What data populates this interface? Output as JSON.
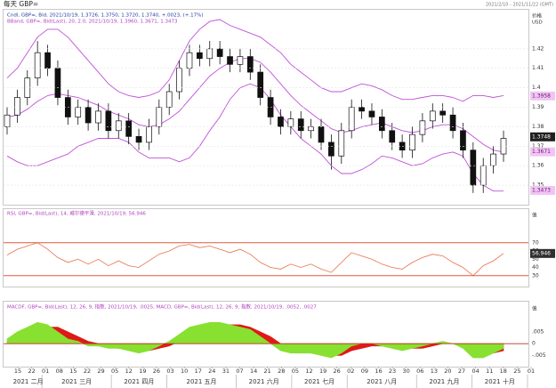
{
  "title": "每天 GBP=",
  "date_range": "2021/2/10 - 2021/11/22 (GMT)",
  "chart_data": [
    {
      "type": "candlestick",
      "legend": [
        "Cndl, GBP=, Bid, 2021/10/19, 1.3726, 1.3750, 1.3720, 1.3740, +.0023, (+.17%)",
        "BBand, GBP=, Bid(Last), 20, 2.0, 2021/10/19, 1.3960, 1.3671, 1.3473"
      ],
      "legend_colors": [
        "#2040a0",
        "#b040c0"
      ],
      "axis_label": [
        "价格",
        "USD"
      ],
      "open": [
        1.38,
        1.386,
        1.395,
        1.405,
        1.418,
        1.41,
        1.395,
        1.385,
        1.39,
        1.382,
        1.388,
        1.378,
        1.383,
        1.375,
        1.372,
        1.38,
        1.39,
        1.398,
        1.41,
        1.418,
        1.415,
        1.42,
        1.416,
        1.412,
        1.416,
        1.408,
        1.395,
        1.385,
        1.38,
        1.384,
        1.378,
        1.38,
        1.372,
        1.365,
        1.378,
        1.39,
        1.388,
        1.385,
        1.378,
        1.372,
        1.368,
        1.376,
        1.383,
        1.388,
        1.386,
        1.378,
        1.368,
        1.35,
        1.36,
        1.366
      ],
      "high": [
        1.39,
        1.399,
        1.409,
        1.424,
        1.422,
        1.414,
        1.399,
        1.394,
        1.394,
        1.392,
        1.392,
        1.387,
        1.387,
        1.379,
        1.384,
        1.394,
        1.402,
        1.414,
        1.422,
        1.422,
        1.424,
        1.424,
        1.42,
        1.42,
        1.42,
        1.412,
        1.399,
        1.389,
        1.388,
        1.388,
        1.384,
        1.384,
        1.376,
        1.382,
        1.394,
        1.394,
        1.392,
        1.389,
        1.382,
        1.376,
        1.38,
        1.387,
        1.392,
        1.392,
        1.39,
        1.382,
        1.372,
        1.364,
        1.37,
        1.378
      ],
      "low": [
        1.376,
        1.382,
        1.391,
        1.401,
        1.406,
        1.391,
        1.381,
        1.381,
        1.378,
        1.378,
        1.374,
        1.374,
        1.371,
        1.368,
        1.368,
        1.376,
        1.386,
        1.394,
        1.406,
        1.411,
        1.411,
        1.412,
        1.408,
        1.408,
        1.404,
        1.391,
        1.381,
        1.376,
        1.376,
        1.374,
        1.374,
        1.368,
        1.358,
        1.361,
        1.374,
        1.384,
        1.381,
        1.374,
        1.368,
        1.364,
        1.364,
        1.372,
        1.379,
        1.382,
        1.374,
        1.364,
        1.346,
        1.346,
        1.356,
        1.362
      ],
      "close": [
        1.386,
        1.395,
        1.405,
        1.418,
        1.41,
        1.395,
        1.385,
        1.39,
        1.382,
        1.388,
        1.378,
        1.383,
        1.375,
        1.372,
        1.38,
        1.39,
        1.398,
        1.41,
        1.418,
        1.415,
        1.42,
        1.416,
        1.412,
        1.416,
        1.408,
        1.395,
        1.385,
        1.38,
        1.384,
        1.378,
        1.38,
        1.372,
        1.365,
        1.378,
        1.39,
        1.388,
        1.385,
        1.378,
        1.372,
        1.368,
        1.376,
        1.383,
        1.388,
        1.386,
        1.378,
        1.368,
        1.35,
        1.36,
        1.366,
        1.374
      ],
      "up_color": "#ffffff",
      "down_color": "#111111",
      "bands": {
        "color": "#c050d8",
        "upper": [
          1.405,
          1.41,
          1.418,
          1.426,
          1.43,
          1.43,
          1.426,
          1.42,
          1.414,
          1.408,
          1.402,
          1.398,
          1.396,
          1.395,
          1.396,
          1.398,
          1.404,
          1.414,
          1.424,
          1.43,
          1.434,
          1.435,
          1.432,
          1.43,
          1.428,
          1.426,
          1.422,
          1.418,
          1.412,
          1.408,
          1.404,
          1.4,
          1.398,
          1.398,
          1.4,
          1.402,
          1.401,
          1.399,
          1.396,
          1.394,
          1.394,
          1.395,
          1.396,
          1.396,
          1.395,
          1.393,
          1.396,
          1.396,
          1.395,
          1.396
        ],
        "middle": [
          1.385,
          1.386,
          1.389,
          1.393,
          1.396,
          1.397,
          1.396,
          1.395,
          1.393,
          1.391,
          1.388,
          1.386,
          1.384,
          1.381,
          1.38,
          1.381,
          1.384,
          1.388,
          1.394,
          1.4,
          1.406,
          1.41,
          1.413,
          1.415,
          1.415,
          1.413,
          1.408,
          1.402,
          1.396,
          1.391,
          1.387,
          1.383,
          1.379,
          1.377,
          1.378,
          1.38,
          1.381,
          1.382,
          1.38,
          1.378,
          1.377,
          1.378,
          1.38,
          1.381,
          1.381,
          1.379,
          1.375,
          1.371,
          1.368,
          1.367
        ],
        "lower": [
          1.365,
          1.362,
          1.36,
          1.36,
          1.362,
          1.364,
          1.366,
          1.37,
          1.372,
          1.374,
          1.374,
          1.374,
          1.372,
          1.367,
          1.364,
          1.364,
          1.364,
          1.362,
          1.364,
          1.37,
          1.378,
          1.385,
          1.394,
          1.4,
          1.402,
          1.4,
          1.394,
          1.386,
          1.38,
          1.374,
          1.37,
          1.366,
          1.36,
          1.356,
          1.356,
          1.358,
          1.361,
          1.365,
          1.364,
          1.362,
          1.36,
          1.361,
          1.364,
          1.366,
          1.367,
          1.365,
          1.356,
          1.35,
          1.347,
          1.347
        ]
      },
      "ylim": [
        1.34,
        1.44
      ],
      "yticks": [
        1.35,
        1.36,
        1.37,
        1.38,
        1.39,
        1.4,
        1.41,
        1.42
      ],
      "grid": true,
      "tags": [
        1.3958,
        1.3748,
        1.3671,
        1.3473
      ],
      "tag_colors": [
        "#f2c4f4",
        "#202020",
        "#f2c4f4",
        "#f2c4f4"
      ],
      "tag_text_colors": [
        "#602070",
        "#ffffff",
        "#602070",
        "#602070"
      ]
    },
    {
      "type": "line",
      "legend": "RSI, GBP=, Bid(Last), 14, 威尔德平滑, 2021/10/19, 56.946",
      "legend_color": "#b040c0",
      "axis_label": "值",
      "values": [
        55,
        62,
        66,
        70,
        62,
        52,
        46,
        50,
        44,
        50,
        42,
        48,
        42,
        40,
        48,
        56,
        60,
        66,
        68,
        64,
        66,
        62,
        58,
        62,
        56,
        46,
        40,
        38,
        44,
        40,
        44,
        38,
        34,
        46,
        58,
        54,
        50,
        44,
        40,
        38,
        46,
        52,
        56,
        54,
        46,
        40,
        30,
        42,
        48,
        57
      ],
      "color": "#e8704c",
      "ylim": [
        20,
        100
      ],
      "yticks": [
        30,
        40,
        50,
        60,
        70
      ],
      "ref_lines": [
        70,
        30
      ],
      "ref_color": "#e05a3a",
      "tag": 56.946,
      "tag_color": "#303030"
    },
    {
      "type": "macd",
      "legend": "MACDF, GBP=, Bid(Last), 12, 26, 9, 指数, 2021/10/19, .0025, MACD, GBP=, Bid(Last), 12, 26, 9, 指数, 2021/10/19, .0052, .0027",
      "legend_color": "#b040c0",
      "axis_label": "值",
      "macd": [
        0.002,
        0.005,
        0.007,
        0.009,
        0.008,
        0.005,
        0.002,
        0.001,
        -0.001,
        -0.001,
        -0.002,
        -0.002,
        -0.003,
        -0.004,
        -0.003,
        -0.001,
        0.001,
        0.004,
        0.007,
        0.008,
        0.009,
        0.009,
        0.008,
        0.007,
        0.006,
        0.003,
        0,
        -0.003,
        -0.004,
        -0.004,
        -0.004,
        -0.005,
        -0.006,
        -0.004,
        -0.001,
        0,
        0,
        -0.001,
        -0.002,
        -0.003,
        -0.002,
        -0.001,
        0,
        0.001,
        0,
        -0.002,
        -0.006,
        -0.006,
        -0.004,
        -0.002
      ],
      "signal": [
        0.001,
        0.002,
        0.004,
        0.006,
        0.007,
        0.007,
        0.005,
        0.003,
        0.001,
        0,
        -0.001,
        -0.002,
        -0.002,
        -0.003,
        -0.003,
        -0.002,
        -0.001,
        0.001,
        0.003,
        0.005,
        0.007,
        0.008,
        0.008,
        0.008,
        0.007,
        0.005,
        0.003,
        0,
        -0.002,
        -0.003,
        -0.004,
        -0.004,
        -0.005,
        -0.005,
        -0.003,
        -0.002,
        -0.001,
        -0.001,
        -0.001,
        -0.002,
        -0.002,
        -0.002,
        -0.001,
        0,
        0,
        -0.001,
        -0.003,
        -0.004,
        -0.004,
        -0.003
      ],
      "macd_color": "#88e030",
      "signal_color": "#e01818",
      "zero_color": "#c03020",
      "ylim": [
        -0.009,
        0.011
      ],
      "yticks": [
        {
          "value": 0.005,
          "label": ".005"
        },
        0,
        {
          "value": -0.005,
          "label": "-.005"
        }
      ]
    }
  ],
  "x_axis": {
    "days": [
      "15",
      "22",
      "01",
      "08",
      "15",
      "22",
      "29",
      "05",
      "12",
      "19",
      "26",
      "03",
      "10",
      "17",
      "24",
      "31",
      "07",
      "14",
      "21",
      "28",
      "05",
      "12",
      "19",
      "26",
      "02",
      "09",
      "16",
      "23",
      "30",
      "06",
      "13",
      "20",
      "27",
      "04",
      "11",
      "18",
      "25",
      "01"
    ],
    "months": [
      "2021 二月",
      "2021 三月",
      "2021 四月",
      "2021 五月",
      "2021 六月",
      "2021 七月",
      "2021 八月",
      "2021 九月",
      "2021 十月"
    ]
  }
}
